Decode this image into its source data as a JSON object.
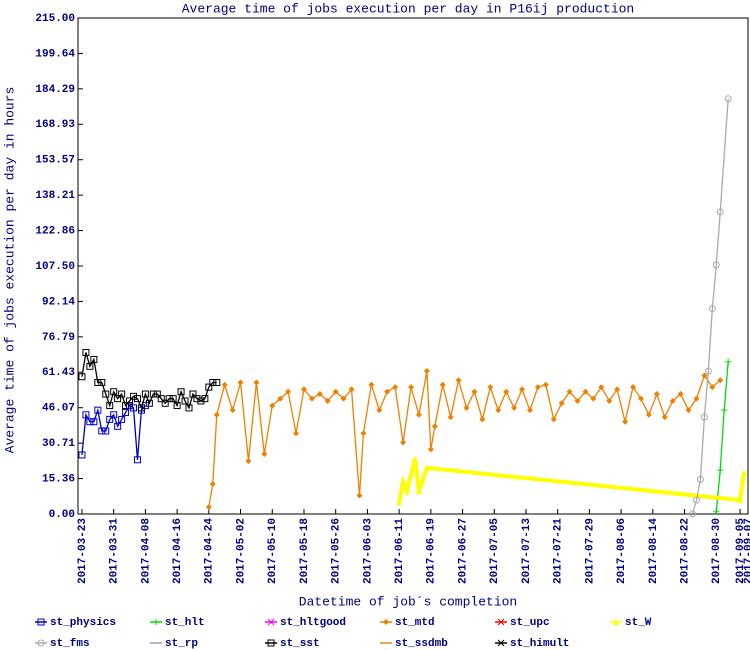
{
  "chart_data": {
    "type": "line",
    "title": "Average time of jobs execution per day in P16ij production",
    "x_label": "Datetime of job´s completion",
    "y_label": "Average time of jobs execution per day in hours",
    "xlim": [
      "2017-03-22",
      "2017-09-07"
    ],
    "ylim": [
      0,
      215
    ],
    "yticks": [
      {
        "value": 0,
        "label": "0.00"
      },
      15.36,
      30.71,
      46.07,
      61.43,
      76.79,
      92.14,
      {
        "value": 107.5,
        "label": "107.50"
      },
      122.86,
      138.21,
      153.57,
      168.93,
      184.29,
      199.64,
      {
        "value": 215,
        "label": "215.00"
      }
    ],
    "xticks": [
      "2017-03-23",
      "2017-03-31",
      "2017-04-08",
      "2017-04-16",
      "2017-04-24",
      "2017-05-02",
      "2017-05-10",
      "2017-05-18",
      "2017-05-26",
      "2017-06-03",
      "2017-06-11",
      "2017-06-19",
      "2017-06-27",
      "2017-07-05",
      "2017-07-13",
      "2017-07-21",
      "2017-07-29",
      "2017-08-06",
      "2017-08-14",
      "2017-08-22",
      "2017-08-30",
      "2017-09-05",
      "2017-09-07"
    ],
    "series": [
      {
        "name": "st_physics",
        "color": "#0000cc",
        "marker": "square",
        "x": [
          "2017-03-23",
          "2017-03-24",
          "2017-03-25",
          "2017-03-26",
          "2017-03-27",
          "2017-03-28",
          "2017-03-29",
          "2017-03-30",
          "2017-03-31",
          "2017-04-01",
          "2017-04-02",
          "2017-04-03",
          "2017-04-04",
          "2017-04-05",
          "2017-04-06",
          "2017-04-07",
          "2017-04-08"
        ],
        "values": [
          25.6,
          43,
          40,
          40,
          45,
          36,
          36,
          41,
          43,
          38,
          41,
          44,
          47,
          46,
          23.5,
          45,
          47
        ]
      },
      {
        "name": "st_hlt",
        "color": "#00dd00",
        "marker": "plus",
        "x": [
          "2017-08-30",
          "2017-08-31",
          "2017-09-01",
          "2017-09-02"
        ],
        "values": [
          1,
          19,
          45,
          66
        ]
      },
      {
        "name": "st_hltgood",
        "color": "#ff00ff",
        "marker": "cross",
        "x": [],
        "values": []
      },
      {
        "name": "st_mtd",
        "color": "#f08000",
        "marker": "diamond",
        "x": [
          "2017-04-24",
          "2017-04-25",
          "2017-04-26",
          "2017-04-28",
          "2017-04-30",
          "2017-05-02",
          "2017-05-04",
          "2017-05-06",
          "2017-05-08",
          "2017-05-10",
          "2017-05-12",
          "2017-05-14",
          "2017-05-16",
          "2017-05-18",
          "2017-05-20",
          "2017-05-22",
          "2017-05-24",
          "2017-05-26",
          "2017-05-28",
          "2017-05-30",
          "2017-06-01",
          "2017-06-02",
          "2017-06-04",
          "2017-06-06",
          "2017-06-08",
          "2017-06-10",
          "2017-06-12",
          "2017-06-14",
          "2017-06-16",
          "2017-06-18",
          "2017-06-19",
          "2017-06-20",
          "2017-06-22",
          "2017-06-24",
          "2017-06-26",
          "2017-06-28",
          "2017-06-30",
          "2017-07-02",
          "2017-07-04",
          "2017-07-06",
          "2017-07-08",
          "2017-07-10",
          "2017-07-12",
          "2017-07-14",
          "2017-07-16",
          "2017-07-18",
          "2017-07-20",
          "2017-07-22",
          "2017-07-24",
          "2017-07-26",
          "2017-07-28",
          "2017-07-30",
          "2017-08-01",
          "2017-08-03",
          "2017-08-05",
          "2017-08-07",
          "2017-08-09",
          "2017-08-11",
          "2017-08-13",
          "2017-08-15",
          "2017-08-17",
          "2017-08-19",
          "2017-08-21",
          "2017-08-23",
          "2017-08-25",
          "2017-08-27",
          "2017-08-29",
          "2017-08-31"
        ],
        "values": [
          3,
          13,
          43,
          56,
          45,
          57,
          23,
          57,
          26,
          47,
          50,
          53,
          35,
          54,
          50,
          52,
          49,
          53,
          50,
          54,
          8,
          35,
          56,
          45,
          53,
          55,
          31,
          55,
          43,
          62,
          28,
          38,
          56,
          42,
          58,
          46,
          53,
          41,
          55,
          45,
          53,
          46,
          54,
          45,
          55,
          56,
          41,
          48,
          53,
          49,
          53,
          50,
          55,
          49,
          54,
          40,
          55,
          50,
          43,
          52,
          42,
          49,
          52,
          45,
          50,
          60,
          55,
          58
        ]
      },
      {
        "name": "st_upc",
        "color": "#ff0000",
        "marker": "cross",
        "x": [],
        "values": []
      },
      {
        "name": "st_W",
        "color": "#ffff00",
        "marker": "triangle",
        "x": [
          "2017-06-11",
          "2017-06-12",
          "2017-06-13",
          "2017-06-14",
          "2017-06-15",
          "2017-06-16",
          "2017-06-17",
          "2017-06-18",
          "2017-09-05",
          "2017-09-06"
        ],
        "values": [
          5,
          14,
          10,
          17,
          24,
          10,
          15,
          20,
          6,
          18
        ]
      },
      {
        "name": "st_fms",
        "color": "#aaaaaa",
        "marker": "circle",
        "x": [
          "2017-08-24",
          "2017-08-25",
          "2017-08-26",
          "2017-08-27",
          "2017-08-28",
          "2017-08-29",
          "2017-08-30",
          "2017-08-31",
          "2017-09-02"
        ],
        "values": [
          0,
          6,
          15,
          42,
          62,
          89,
          108,
          131,
          180
        ]
      },
      {
        "name": "st_rp",
        "color": "#9999cc",
        "marker": "none",
        "x": [],
        "values": []
      },
      {
        "name": "st_sst",
        "color": "#000000",
        "marker": "square",
        "x": [
          "2017-03-23",
          "2017-03-24",
          "2017-03-25",
          "2017-03-26",
          "2017-03-27",
          "2017-03-28",
          "2017-03-29",
          "2017-03-30",
          "2017-03-31",
          "2017-04-01",
          "2017-04-02",
          "2017-04-03",
          "2017-04-04",
          "2017-04-05",
          "2017-04-06",
          "2017-04-07",
          "2017-04-08",
          "2017-04-09",
          "2017-04-10",
          "2017-04-11",
          "2017-04-12",
          "2017-04-13",
          "2017-04-14",
          "2017-04-15",
          "2017-04-16",
          "2017-04-17",
          "2017-04-18",
          "2017-04-19",
          "2017-04-20",
          "2017-04-21",
          "2017-04-22",
          "2017-04-23",
          "2017-04-24",
          "2017-04-25",
          "2017-04-26"
        ],
        "values": [
          59.5,
          70,
          64,
          67,
          57,
          57,
          52,
          47,
          53,
          50,
          52,
          47,
          49,
          51,
          50,
          46,
          52,
          48,
          52,
          52,
          50,
          48,
          50,
          50,
          47,
          53,
          49,
          46,
          52,
          50,
          49,
          50,
          55,
          57,
          57
        ]
      },
      {
        "name": "st_ssdmb",
        "color": "#e08820",
        "marker": "none",
        "x": [],
        "values": []
      },
      {
        "name": "st_himult",
        "color": "#000000",
        "marker": "cross",
        "x": [],
        "values": []
      }
    ]
  }
}
